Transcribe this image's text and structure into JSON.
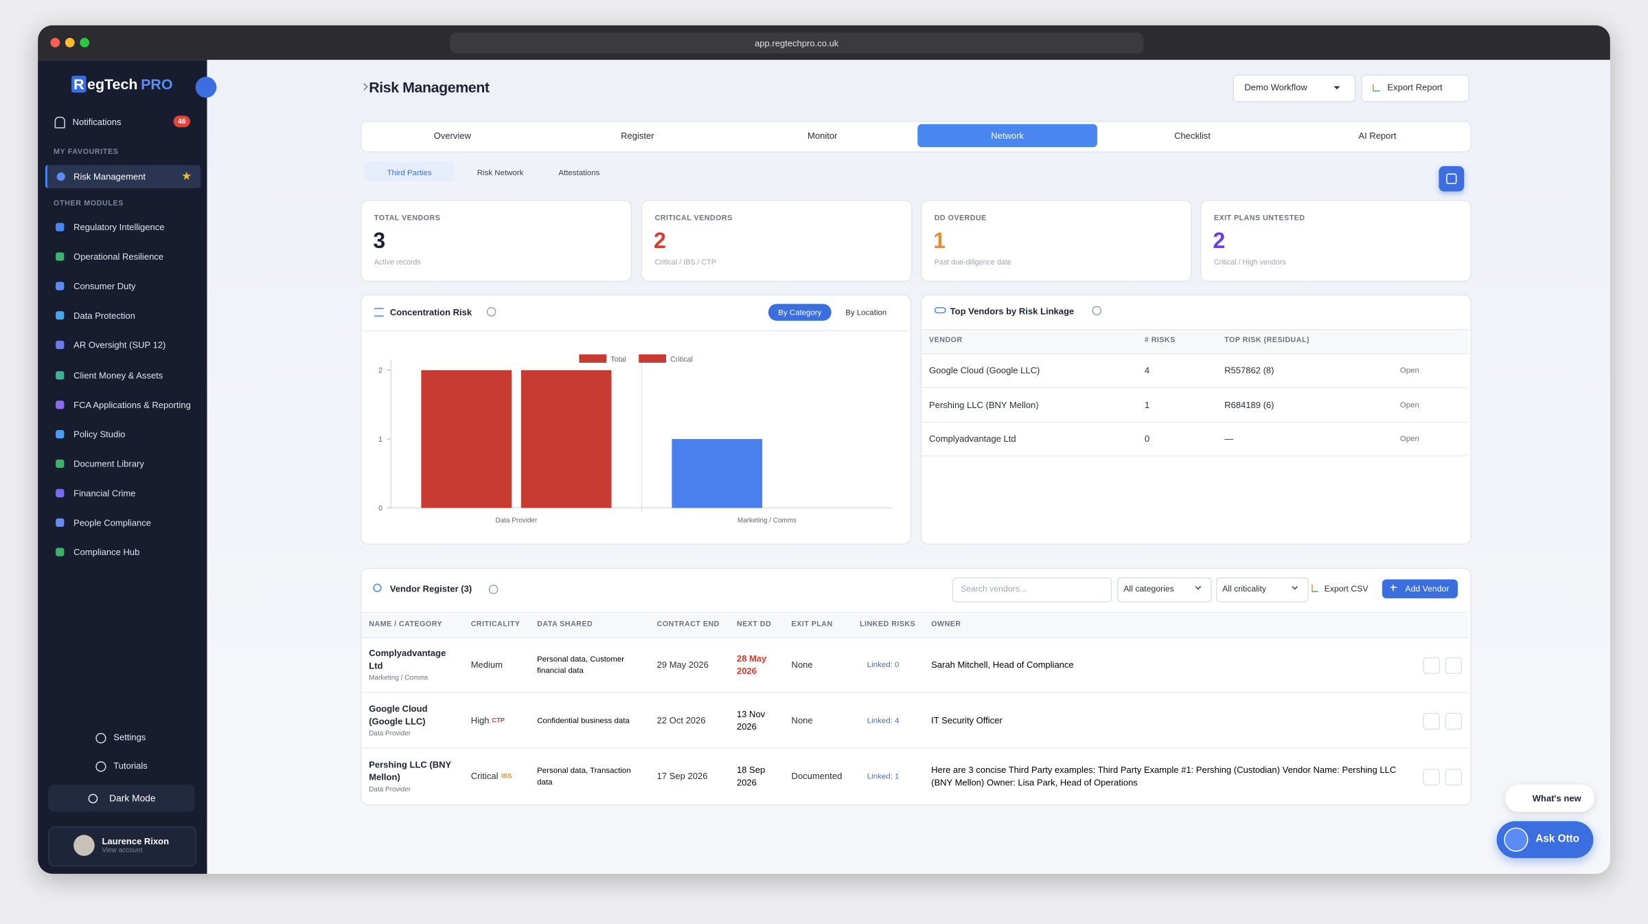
{
  "browser": {
    "url": "app.regtechpro.co.uk"
  },
  "sidebar": {
    "brand_initial": "R",
    "brand_rest": "egTech",
    "brand_accent": "PRO",
    "notifications": {
      "label": "Notifications",
      "badge": "46"
    },
    "favourites_heading": "MY FAVOURITES",
    "favourites": [
      "Risk Management"
    ],
    "modules_heading": "OTHER MODULES",
    "modules": [
      "Regulatory Intelligence",
      "Operational Resilience",
      "Consumer Duty",
      "Data Protection",
      "AR Oversight (SUP 12)",
      "Client Money & Assets",
      "FCA Applications & Reporting",
      "Policy Studio",
      "Document Library",
      "Financial Crime",
      "People Compliance",
      "Compliance Hub"
    ],
    "settings": "Settings",
    "tutorials": "Tutorials",
    "dark_mode": "Dark Mode",
    "user": {
      "name": "Laurence Rixon",
      "link": "View account"
    }
  },
  "header": {
    "title": "Risk Management",
    "workflow": "Demo Workflow",
    "export": "Export Report"
  },
  "tabs": {
    "items": [
      "Overview",
      "Register",
      "Monitor",
      "Network",
      "Checklist",
      "AI Report"
    ],
    "active": 3
  },
  "subtabs": {
    "items": [
      "Third Parties",
      "Risk Network",
      "Attestations"
    ],
    "active": 0
  },
  "kpis": [
    {
      "label": "TOTAL VENDORS",
      "value": 3,
      "note": "Active records",
      "color": "#1d2333"
    },
    {
      "label": "CRITICAL VENDORS",
      "value": 2,
      "note": "Critical / IBS / CTP",
      "color": "#d63b2b"
    },
    {
      "label": "DD OVERDUE",
      "value": 1,
      "note": "Past due-diligence date",
      "color": "#e0903a"
    },
    {
      "label": "EXIT PLANS UNTESTED",
      "value": 2,
      "note": "Critical / High vendors",
      "color": "#6a3de8"
    }
  ],
  "concentration": {
    "title": "Concentration Risk",
    "toggles": [
      "By Category",
      "By Location"
    ],
    "active": 0
  },
  "chart_data": {
    "type": "bar",
    "categories": [
      "Data Provider",
      "Marketing / Comms"
    ],
    "series": [
      {
        "name": "Total",
        "color": "#c93a30",
        "point_colors": [
          "#c93a30",
          "#4a80ee"
        ],
        "values": [
          2,
          1
        ]
      },
      {
        "name": "Critical",
        "color": "#c93a30",
        "point_colors": [
          "#c93a30",
          "#c93a30"
        ],
        "values": [
          2,
          0
        ]
      }
    ],
    "ylim": [
      0,
      2
    ],
    "yticks": [
      0,
      1,
      2
    ],
    "legend": "top"
  },
  "top_vendors": {
    "title": "Top Vendors by Risk Linkage",
    "columns": [
      "VENDOR",
      "# RISKS",
      "TOP RISK (RESIDUAL)"
    ],
    "rows": [
      {
        "vendor": "Google Cloud (Google LLC)",
        "risks": 4,
        "top": "R557862 (8)",
        "action": "Open"
      },
      {
        "vendor": "Pershing LLC (BNY Mellon)",
        "risks": 1,
        "top": "R684189 (6)",
        "action": "Open"
      },
      {
        "vendor": "Complyadvantage Ltd",
        "risks": 0,
        "top": "—",
        "action": "Open"
      }
    ]
  },
  "register": {
    "title": "Vendor Register (3)",
    "search": "Search vendors...",
    "filters": [
      "All categories",
      "All criticality"
    ],
    "export": "Export CSV",
    "add": "Add Vendor",
    "columns": [
      "NAME / CATEGORY",
      "CRITICALITY",
      "DATA SHARED",
      "CONTRACT END",
      "NEXT DD",
      "EXIT PLAN",
      "LINKED RISKS",
      "OWNER"
    ],
    "rows": [
      {
        "name": "Complyadvantage Ltd",
        "category": "Marketing / Comms",
        "criticality": "Medium",
        "data": "Personal data, Customer financial data",
        "contract_end": "29 May 2026",
        "next_dd": "28 May 2026",
        "overdue": true,
        "exit": "None",
        "linked": "Linked: 0",
        "owner": "Sarah Mitchell, Head of Compliance"
      },
      {
        "name": "Google Cloud (Google LLC)",
        "category": "Data Provider",
        "criticality": "High",
        "tag": "CTP",
        "data": "Confidential business data",
        "contract_end": "22 Oct 2026",
        "next_dd": "13 Nov 2026",
        "overdue": false,
        "exit": "None",
        "linked": "Linked: 4",
        "owner": "IT Security Officer"
      },
      {
        "name": "Pershing LLC (BNY Mellon)",
        "category": "Data Provider",
        "criticality": "Critical",
        "tag": "IBS",
        "data": "Personal data, Transaction data",
        "contract_end": "17 Sep 2026",
        "next_dd": "18 Sep 2026",
        "overdue": false,
        "exit": "Documented",
        "linked": "Linked: 1",
        "owner": "Here are 3 concise Third Party examples: Third Party Example #1: Pershing (Custodian) Vendor Name: Pershing LLC (BNY Mellon) Owner: Lisa Park, Head of Operations"
      }
    ]
  },
  "floating": {
    "whats_new": "What's new",
    "ask": "Ask Otto"
  }
}
